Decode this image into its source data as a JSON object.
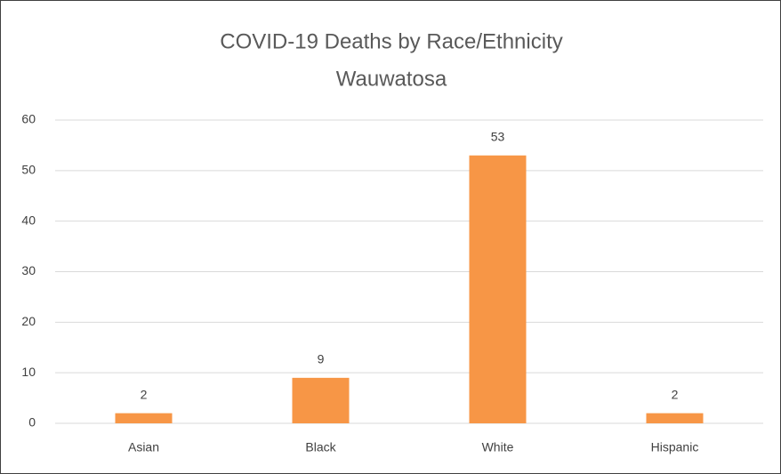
{
  "chart_data": {
    "type": "bar",
    "title": "COVID-19 Deaths by Race/Ethnicity",
    "subtitle": "Wauwatosa",
    "categories": [
      "Asian",
      "Black",
      "White",
      "Hispanic"
    ],
    "values": [
      2,
      9,
      53,
      2
    ],
    "color": "#f79646",
    "ylim": [
      0,
      60
    ],
    "yticks": [
      0,
      10,
      20,
      30,
      40,
      50,
      60
    ],
    "grid": true,
    "data_labels": true
  }
}
